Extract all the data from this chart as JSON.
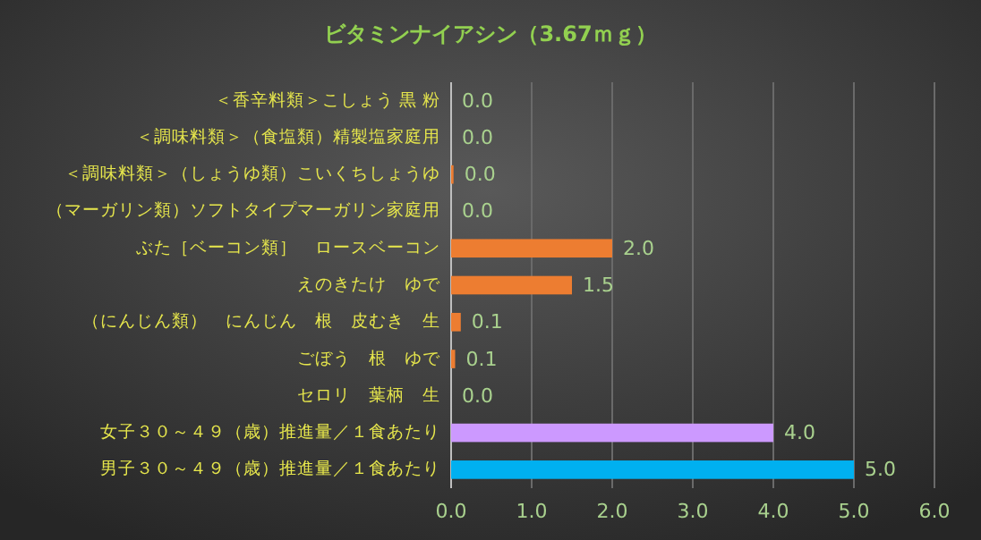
{
  "chart_data": {
    "type": "bar",
    "orientation": "horizontal",
    "title": "ビタミンナイアシン（3.67ｍｇ）",
    "categories": [
      "＜香辛料類＞こしょう 黒 粉",
      "＜調味料類＞（食塩類）精製塩家庭用",
      "＜調味料類＞（しょうゆ類）こいくちしょうゆ",
      "（マーガリン類）ソフトタイプマーガリン家庭用",
      "ぶた［ベーコン類］　ロースベーコン",
      "えのきたけ　ゆで",
      "（にんじん類）　にんじん　根　皮むき　生",
      "ごぼう　根　ゆで",
      "セロリ　葉柄　生",
      "女子３０～４９（歳）推進量／１食あたり",
      "男子３０～４９（歳）推進量／１食あたり"
    ],
    "values": [
      0,
      0,
      0.03,
      0,
      2.0,
      1.5,
      0.12,
      0.05,
      0,
      4.0,
      5.0
    ],
    "value_labels": [
      "0.0",
      "0.0",
      "0.0",
      "0.0",
      "2.0",
      "1.5",
      "0.1",
      "0.1",
      "0.0",
      "4.0",
      "5.0"
    ],
    "colors": [
      "#ed7d31",
      "#ed7d31",
      "#ed7d31",
      "#ed7d31",
      "#ed7d31",
      "#ed7d31",
      "#ed7d31",
      "#ed7d31",
      "#ed7d31",
      "#cc99ff",
      "#00b0f0"
    ],
    "xlim": [
      0,
      6
    ],
    "xticks": [
      {
        "value": 0,
        "label": "0.0"
      },
      {
        "value": 1,
        "label": "1.0"
      },
      {
        "value": 2,
        "label": "2.0"
      },
      {
        "value": 3,
        "label": "3.0"
      },
      {
        "value": 4,
        "label": "4.0"
      },
      {
        "value": 5,
        "label": "5.0"
      },
      {
        "value": 6,
        "label": "6.0"
      }
    ],
    "grid": "x"
  }
}
